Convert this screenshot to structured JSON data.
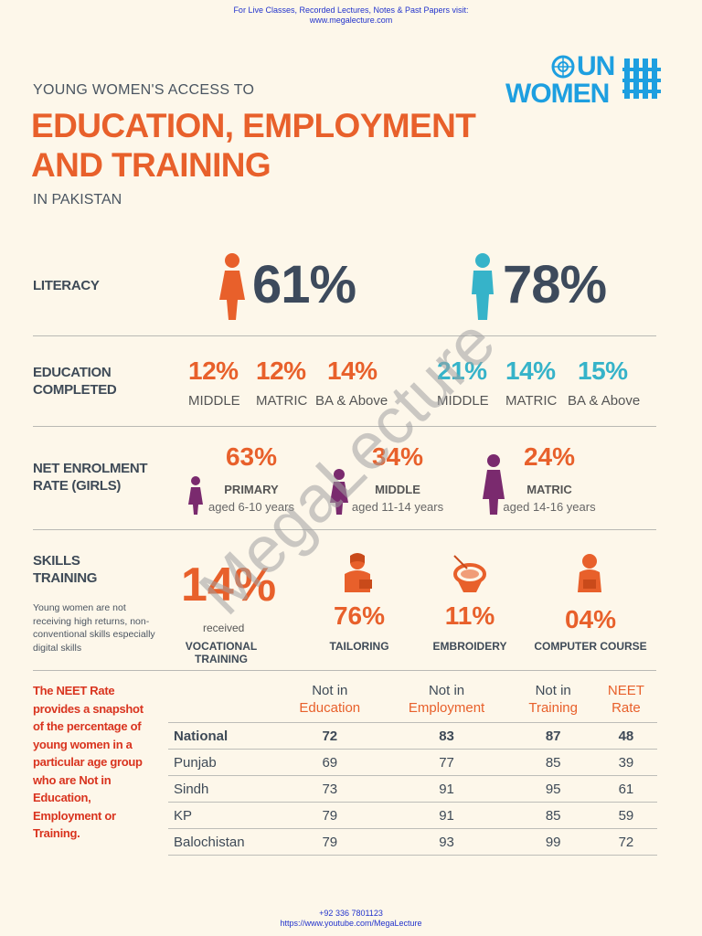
{
  "header_note": {
    "line1": "For Live Classes, Recorded Lectures, Notes & Past Papers visit:",
    "line2": "www.megalecture.com"
  },
  "subtitle": "YOUNG WOMEN'S ACCESS TO",
  "title_line1": "EDUCATION, EMPLOYMENT",
  "title_line2": "AND TRAINING",
  "in_pakistan": "IN PAKISTAN",
  "logo": {
    "un": "UN",
    "women": "WOMEN"
  },
  "literacy": {
    "label": "LITERACY",
    "female": "61%",
    "male": "78%",
    "colors": {
      "female": "#e8602b",
      "male": "#36b3c9"
    }
  },
  "education": {
    "label_line1": "EDUCATION",
    "label_line2": "COMPLETED",
    "female": [
      {
        "pct": "12%",
        "label": "MIDDLE"
      },
      {
        "pct": "12%",
        "label": "MATRIC"
      },
      {
        "pct": "14%",
        "label": "BA & Above"
      }
    ],
    "male": [
      {
        "pct": "21%",
        "label": "MIDDLE"
      },
      {
        "pct": "14%",
        "label": "MATRIC"
      },
      {
        "pct": "15%",
        "label": "BA & Above"
      }
    ]
  },
  "enrolment": {
    "label_line1": "NET ENROLMENT",
    "label_line2": "RATE (GIRLS)",
    "items": [
      {
        "pct": "63%",
        "level": "PRIMARY",
        "age": "aged 6-10 years"
      },
      {
        "pct": "34%",
        "level": "MIDDLE",
        "age": "aged 11-14 years"
      },
      {
        "pct": "24%",
        "level": "MATRIC",
        "age": "aged 14-16 years"
      }
    ]
  },
  "skills": {
    "label_line1": "SKILLS",
    "label_line2": "TRAINING",
    "note": "Young women are not receiving high returns, non-conventional skills especially digital skills",
    "vocational": {
      "pct": "14%",
      "received": "received",
      "label": "VOCATIONAL TRAINING"
    },
    "items": [
      {
        "pct": "76%",
        "label": "TAILORING",
        "icon": "tailor-icon"
      },
      {
        "pct": "11%",
        "label": "EMBROIDERY",
        "icon": "embroidery-icon"
      },
      {
        "pct": "04%",
        "label": "COMPUTER COURSE",
        "icon": "computer-user-icon"
      }
    ]
  },
  "neet": {
    "description": "The NEET Rate provides a snapshot of the percentage of young women in a particular age group who are Not in Education, Employment or Training.",
    "columns": [
      {
        "top": "Not in",
        "bottom": "Education"
      },
      {
        "top": "Not in",
        "bottom": "Employment"
      },
      {
        "top": "Not in",
        "bottom": "Training"
      },
      {
        "top": "NEET",
        "bottom": "Rate"
      }
    ],
    "rows": [
      {
        "region": "National",
        "values": [
          "72",
          "83",
          "87",
          "48"
        ]
      },
      {
        "region": "Punjab",
        "values": [
          "69",
          "77",
          "85",
          "39"
        ]
      },
      {
        "region": "Sindh",
        "values": [
          "73",
          "91",
          "95",
          "61"
        ]
      },
      {
        "region": "KP",
        "values": [
          "79",
          "91",
          "85",
          "59"
        ]
      },
      {
        "region": "Balochistan",
        "values": [
          "79",
          "93",
          "99",
          "72"
        ]
      }
    ]
  },
  "watermark": "MegaLecture",
  "footer_note": {
    "line1": "+92 336 7801123",
    "line2": "https://www.youtube.com/MegaLecture"
  }
}
